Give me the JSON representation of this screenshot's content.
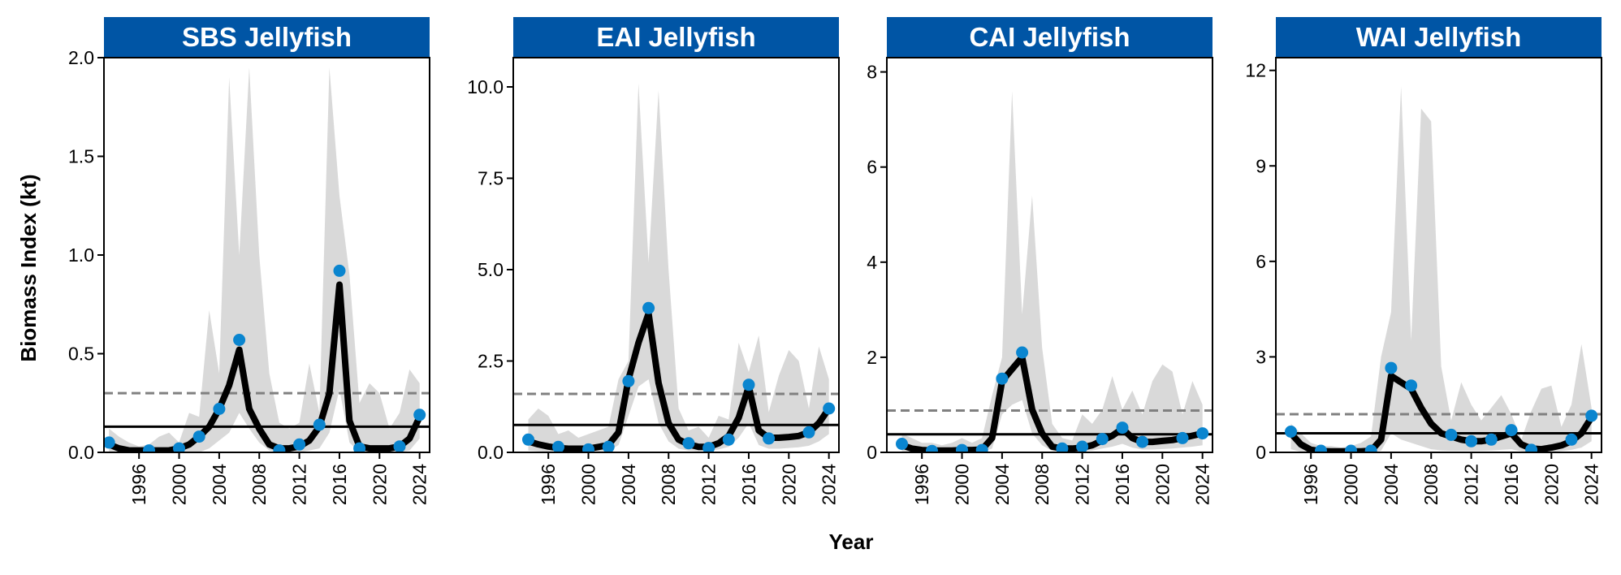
{
  "figure": {
    "ylabel": "Biomass Index (kt)",
    "xlabel": "Year",
    "colors": {
      "strip": "#0055A5",
      "strip_text": "#FFFFFF",
      "band": "#D9D9D9",
      "line": "#000000",
      "points": "#0A85CF",
      "mean_line": "#000000",
      "upper_line": "#808080"
    }
  },
  "chart_data": [
    {
      "type": "line",
      "title": "SBS Jellyfish",
      "ylim": [
        0,
        2.0
      ],
      "yticks": [
        0.0,
        0.5,
        1.0,
        1.5,
        2.0
      ],
      "ytick_labels": [
        "0.0",
        "0.5",
        "1.0",
        "1.5",
        "2.0"
      ],
      "xlim": [
        1992.5,
        2025
      ],
      "xticks": [
        1996,
        2000,
        2004,
        2008,
        2012,
        2016,
        2020,
        2024
      ],
      "xtick_labels": [
        "1996",
        "2000",
        "2004",
        "2008",
        "2012",
        "2016",
        "2020",
        "2024"
      ],
      "mean_line": 0.13,
      "upper_line": 0.3,
      "points": {
        "x": [
          1993,
          1997,
          2000,
          2002,
          2004,
          2006,
          2010,
          2012,
          2014,
          2016,
          2018,
          2022,
          2024
        ],
        "y": [
          0.05,
          0.01,
          0.02,
          0.08,
          0.22,
          0.57,
          0.01,
          0.04,
          0.14,
          0.92,
          0.02,
          0.03,
          0.19
        ]
      },
      "fit": {
        "x": [
          1993,
          1994,
          1995,
          1996,
          1997,
          1998,
          1999,
          2000,
          2001,
          2002,
          2003,
          2004,
          2005,
          2006,
          2007,
          2008,
          2009,
          2010,
          2011,
          2012,
          2013,
          2014,
          2015,
          2016,
          2017,
          2018,
          2019,
          2020,
          2021,
          2022,
          2023,
          2024
        ],
        "y": [
          0.04,
          0.02,
          0.01,
          0.01,
          0.01,
          0.01,
          0.01,
          0.02,
          0.04,
          0.08,
          0.13,
          0.22,
          0.34,
          0.52,
          0.22,
          0.12,
          0.04,
          0.02,
          0.02,
          0.03,
          0.06,
          0.13,
          0.3,
          0.85,
          0.16,
          0.03,
          0.02,
          0.02,
          0.02,
          0.03,
          0.07,
          0.18
        ]
      },
      "band": {
        "lower": [
          0.0,
          0.0,
          0.0,
          0.0,
          0.0,
          0.0,
          0.0,
          0.0,
          0.0,
          0.0,
          0.02,
          0.06,
          0.1,
          0.2,
          0.12,
          0.05,
          0.01,
          0.0,
          0.0,
          0.0,
          0.01,
          0.02,
          0.1,
          0.32,
          0.05,
          0.0,
          0.0,
          0.0,
          0.0,
          0.0,
          0.01,
          0.07
        ],
        "upper": [
          0.12,
          0.08,
          0.05,
          0.03,
          0.04,
          0.08,
          0.1,
          0.05,
          0.2,
          0.18,
          0.72,
          0.4,
          1.9,
          1.0,
          1.95,
          1.0,
          0.4,
          0.15,
          0.12,
          0.15,
          0.45,
          0.2,
          1.95,
          1.3,
          0.9,
          0.25,
          0.35,
          0.3,
          0.12,
          0.2,
          0.42,
          0.35
        ]
      }
    },
    {
      "type": "line",
      "title": "EAI Jellyfish",
      "ylim": [
        0,
        10.8
      ],
      "yticks": [
        0.0,
        2.5,
        5.0,
        7.5,
        10.0
      ],
      "ytick_labels": [
        "0.0",
        "2.5",
        "5.0",
        "7.5",
        "10.0"
      ],
      "xlim": [
        1992.5,
        2025
      ],
      "xticks": [
        1996,
        2000,
        2004,
        2008,
        2012,
        2016,
        2020,
        2024
      ],
      "xtick_labels": [
        "1996",
        "2000",
        "2004",
        "2008",
        "2012",
        "2016",
        "2020",
        "2024"
      ],
      "mean_line": 0.75,
      "upper_line": 1.6,
      "points": {
        "x": [
          1994,
          1997,
          2000,
          2002,
          2004,
          2006,
          2010,
          2012,
          2014,
          2016,
          2018,
          2022,
          2024
        ],
        "y": [
          0.35,
          0.15,
          0.08,
          0.15,
          1.95,
          3.95,
          0.25,
          0.12,
          0.35,
          1.85,
          0.38,
          0.55,
          1.2
        ]
      },
      "fit": {
        "x": [
          1994,
          1995,
          1996,
          1997,
          1998,
          1999,
          2000,
          2001,
          2002,
          2003,
          2004,
          2005,
          2006,
          2007,
          2008,
          2009,
          2010,
          2011,
          2012,
          2013,
          2014,
          2015,
          2016,
          2017,
          2018,
          2019,
          2020,
          2021,
          2022,
          2023,
          2024
        ],
        "y": [
          0.3,
          0.22,
          0.16,
          0.12,
          0.1,
          0.1,
          0.1,
          0.15,
          0.2,
          0.55,
          2.0,
          3.0,
          3.8,
          1.9,
          0.8,
          0.35,
          0.22,
          0.15,
          0.15,
          0.25,
          0.45,
          0.95,
          1.8,
          0.6,
          0.4,
          0.4,
          0.42,
          0.45,
          0.55,
          0.8,
          1.2
        ]
      },
      "band": {
        "lower": [
          0.05,
          0.03,
          0.02,
          0.02,
          0.01,
          0.01,
          0.01,
          0.02,
          0.03,
          0.2,
          1.0,
          1.8,
          2.0,
          0.8,
          0.3,
          0.1,
          0.05,
          0.03,
          0.04,
          0.08,
          0.15,
          0.4,
          0.8,
          0.2,
          0.1,
          0.1,
          0.12,
          0.14,
          0.18,
          0.3,
          0.5
        ],
        "upper": [
          0.9,
          1.2,
          1.0,
          0.5,
          0.6,
          0.4,
          0.5,
          0.6,
          0.7,
          2.0,
          2.5,
          10.1,
          5.2,
          9.9,
          5.0,
          1.2,
          0.6,
          0.7,
          0.4,
          1.0,
          0.9,
          3.0,
          2.2,
          3.2,
          1.1,
          2.1,
          2.8,
          2.5,
          1.2,
          2.9,
          2.0
        ]
      }
    },
    {
      "type": "line",
      "title": "CAI Jellyfish",
      "ylim": [
        0,
        8.3
      ],
      "yticks": [
        0,
        2,
        4,
        6,
        8
      ],
      "ytick_labels": [
        "0",
        "2",
        "4",
        "6",
        "8"
      ],
      "xlim": [
        1992.5,
        2025
      ],
      "xticks": [
        1996,
        2000,
        2004,
        2008,
        2012,
        2016,
        2020,
        2024
      ],
      "xtick_labels": [
        "1996",
        "2000",
        "2004",
        "2008",
        "2012",
        "2016",
        "2020",
        "2024"
      ],
      "mean_line": 0.38,
      "upper_line": 0.88,
      "points": {
        "x": [
          1994,
          1997,
          2000,
          2002,
          2004,
          2006,
          2010,
          2012,
          2014,
          2016,
          2018,
          2022,
          2024
        ],
        "y": [
          0.18,
          0.03,
          0.05,
          0.05,
          1.55,
          2.1,
          0.08,
          0.12,
          0.28,
          0.52,
          0.22,
          0.3,
          0.4
        ]
      },
      "fit": {
        "x": [
          1994,
          1995,
          1996,
          1997,
          1998,
          1999,
          2000,
          2001,
          2002,
          2003,
          2004,
          2005,
          2006,
          2007,
          2008,
          2009,
          2010,
          2011,
          2012,
          2013,
          2014,
          2015,
          2016,
          2017,
          2018,
          2019,
          2020,
          2021,
          2022,
          2023,
          2024
        ],
        "y": [
          0.15,
          0.08,
          0.05,
          0.04,
          0.04,
          0.04,
          0.05,
          0.05,
          0.06,
          0.3,
          1.5,
          1.75,
          2.0,
          0.9,
          0.4,
          0.12,
          0.08,
          0.08,
          0.1,
          0.15,
          0.25,
          0.35,
          0.5,
          0.3,
          0.22,
          0.22,
          0.24,
          0.26,
          0.3,
          0.35,
          0.4
        ]
      },
      "band": {
        "lower": [
          0.02,
          0.01,
          0.0,
          0.0,
          0.0,
          0.0,
          0.0,
          0.0,
          0.0,
          0.08,
          0.8,
          1.0,
          1.1,
          0.4,
          0.15,
          0.03,
          0.02,
          0.02,
          0.02,
          0.04,
          0.08,
          0.12,
          0.18,
          0.1,
          0.06,
          0.06,
          0.07,
          0.08,
          0.1,
          0.12,
          0.15
        ],
        "upper": [
          0.4,
          0.3,
          0.2,
          0.2,
          0.15,
          0.2,
          0.3,
          0.2,
          0.3,
          1.2,
          2.0,
          7.6,
          2.9,
          5.4,
          2.2,
          0.6,
          0.3,
          0.25,
          0.8,
          0.6,
          0.9,
          1.6,
          0.9,
          1.3,
          0.8,
          1.5,
          1.85,
          1.7,
          0.8,
          1.5,
          1.0
        ]
      }
    },
    {
      "type": "line",
      "title": "WAI Jellyfish",
      "ylim": [
        0,
        12.4
      ],
      "yticks": [
        0,
        3,
        6,
        9,
        12
      ],
      "ytick_labels": [
        "0",
        "3",
        "6",
        "9",
        "12"
      ],
      "xlim": [
        1992.5,
        2025
      ],
      "xticks": [
        1996,
        2000,
        2004,
        2008,
        2012,
        2016,
        2020,
        2024
      ],
      "xtick_labels": [
        "1996",
        "2000",
        "2004",
        "2008",
        "2012",
        "2016",
        "2020",
        "2024"
      ],
      "mean_line": 0.6,
      "upper_line": 1.2,
      "points": {
        "x": [
          1994,
          1997,
          2000,
          2002,
          2004,
          2006,
          2010,
          2012,
          2014,
          2016,
          2018,
          2022,
          2024
        ],
        "y": [
          0.65,
          0.05,
          0.05,
          0.05,
          2.65,
          2.1,
          0.55,
          0.35,
          0.4,
          0.7,
          0.08,
          0.4,
          1.15
        ]
      },
      "fit": {
        "x": [
          1994,
          1995,
          1996,
          1997,
          1998,
          1999,
          2000,
          2001,
          2002,
          2003,
          2004,
          2005,
          2006,
          2007,
          2008,
          2009,
          2010,
          2011,
          2012,
          2013,
          2014,
          2015,
          2016,
          2017,
          2018,
          2019,
          2020,
          2021,
          2022,
          2023,
          2024
        ],
        "y": [
          0.6,
          0.25,
          0.08,
          0.04,
          0.03,
          0.03,
          0.03,
          0.03,
          0.05,
          0.4,
          2.4,
          2.2,
          2.0,
          1.4,
          0.9,
          0.6,
          0.5,
          0.4,
          0.35,
          0.35,
          0.4,
          0.5,
          0.6,
          0.25,
          0.12,
          0.1,
          0.15,
          0.22,
          0.35,
          0.6,
          1.1
        ]
      },
      "band": {
        "lower": [
          0.1,
          0.02,
          0.0,
          0.0,
          0.0,
          0.0,
          0.0,
          0.0,
          0.0,
          0.05,
          0.6,
          0.4,
          0.3,
          0.2,
          0.1,
          0.06,
          0.05,
          0.05,
          0.05,
          0.05,
          0.06,
          0.08,
          0.1,
          0.03,
          0.01,
          0.01,
          0.02,
          0.04,
          0.08,
          0.15,
          0.35
        ],
        "upper": [
          0.9,
          0.6,
          0.3,
          0.2,
          0.2,
          0.15,
          0.2,
          0.3,
          0.5,
          3.0,
          4.4,
          11.5,
          3.5,
          10.8,
          10.4,
          2.7,
          1.0,
          2.2,
          1.5,
          1.0,
          1.4,
          1.8,
          1.2,
          0.4,
          1.3,
          2.0,
          2.1,
          0.8,
          1.5,
          3.4,
          1.4
        ]
      }
    }
  ]
}
